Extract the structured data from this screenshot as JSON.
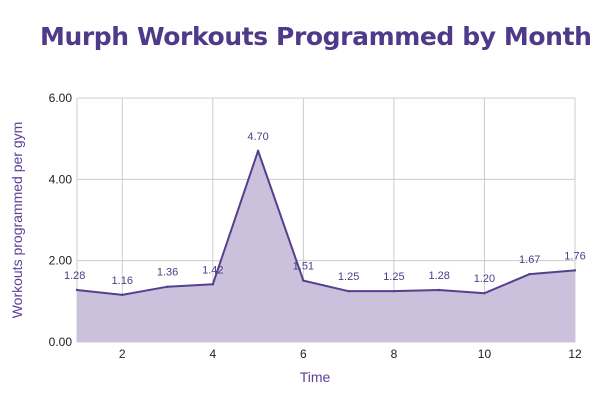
{
  "chart_data": {
    "type": "area",
    "title": "Murph Workouts Programmed by Month",
    "xlabel": "Time",
    "ylabel": "Workouts programmed per gym",
    "x": [
      1,
      2,
      3,
      4,
      5,
      6,
      7,
      8,
      9,
      10,
      11,
      12
    ],
    "values": [
      1.28,
      1.16,
      1.36,
      1.42,
      4.7,
      1.51,
      1.25,
      1.25,
      1.28,
      1.2,
      1.67,
      1.76
    ],
    "data_labels": [
      "1.28",
      "1.16",
      "1.36",
      "1.42",
      "4.70",
      "1.51",
      "1.25",
      "1.25",
      "1.28",
      "1.20",
      "1.67",
      "1.76"
    ],
    "xlim": [
      1,
      12
    ],
    "ylim": [
      0,
      6
    ],
    "x_ticks": [
      2,
      4,
      6,
      8,
      10,
      12
    ],
    "x_tick_labels": [
      "2",
      "4",
      "6",
      "8",
      "10",
      "12"
    ],
    "y_ticks": [
      0,
      2,
      4,
      6
    ],
    "y_tick_labels": [
      "0.00",
      "2.00",
      "4.00",
      "6.00"
    ],
    "grid": true,
    "legend": "none",
    "colors": {
      "title": "#4f3a8a",
      "line": "#55408f",
      "fill": "#cbc1dc",
      "data_label": "#4f3a8a",
      "axis_label": "#5b3f99",
      "tick_label": "#222222",
      "grid": "#cccccc"
    }
  }
}
